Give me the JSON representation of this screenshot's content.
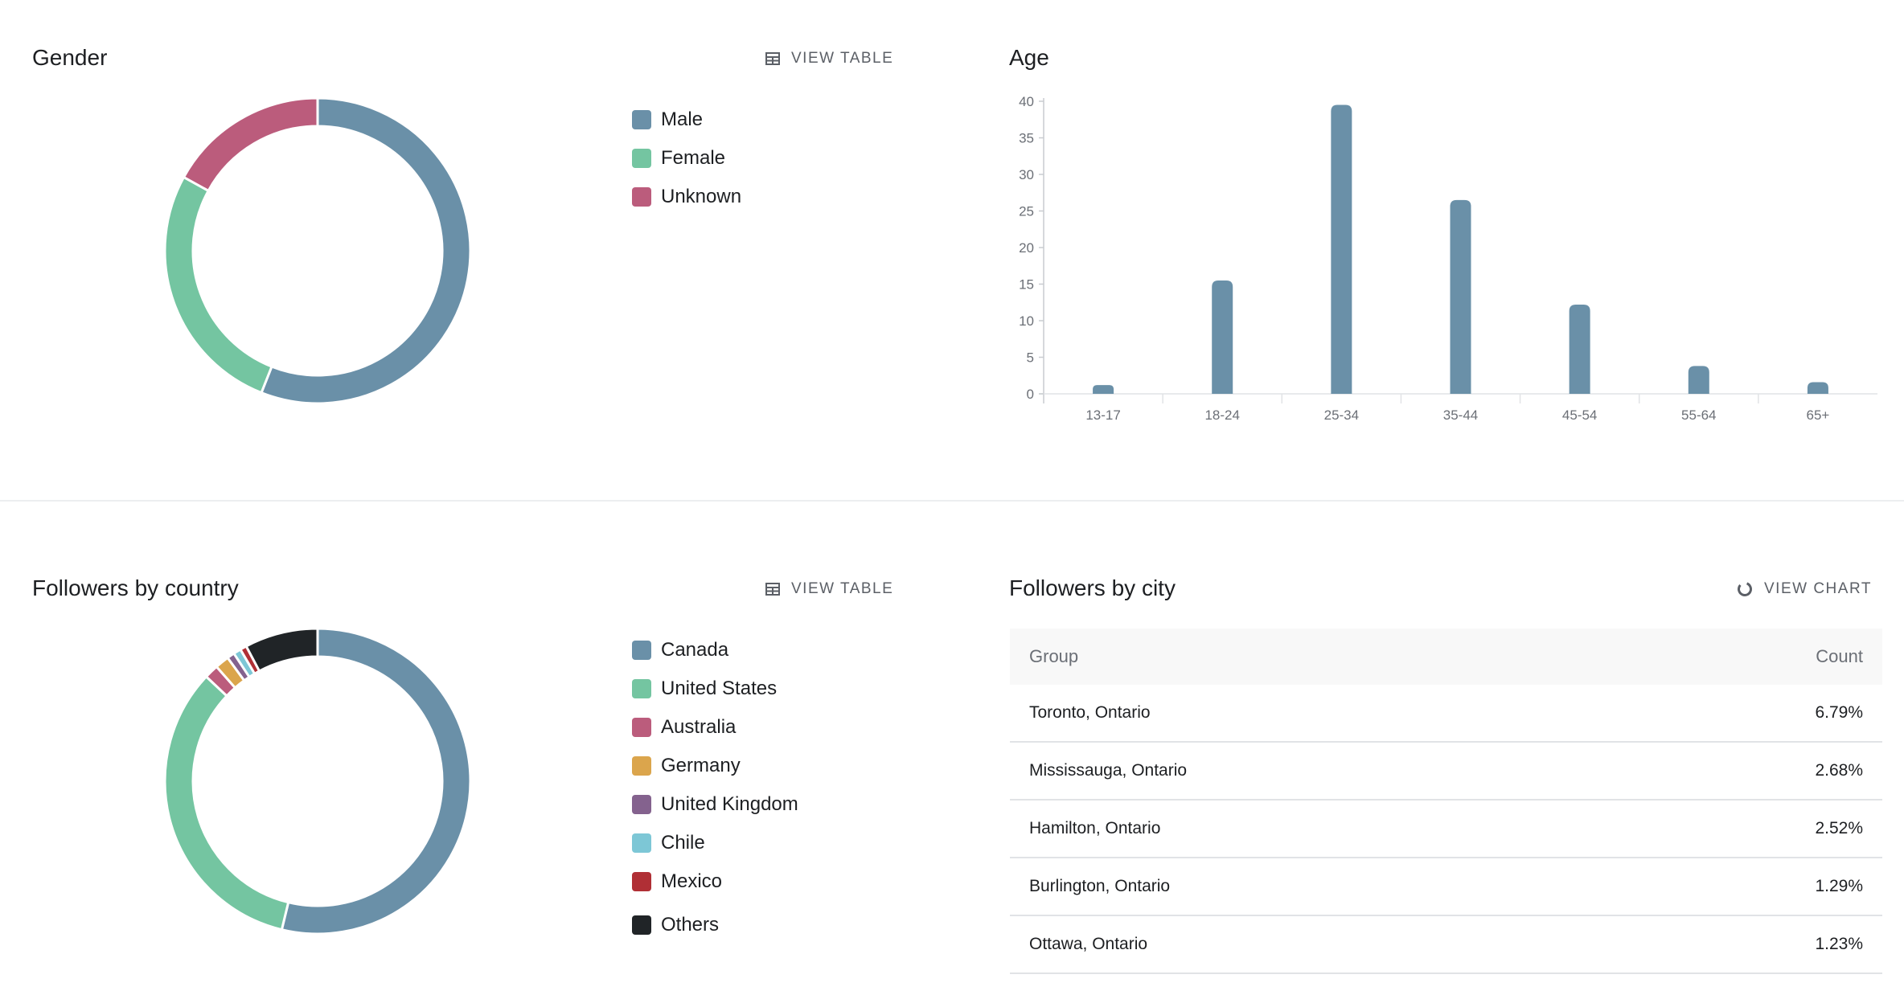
{
  "gender": {
    "title": "Gender",
    "view_label": "VIEW TABLE",
    "icon": "table-icon",
    "chart_data": {
      "type": "pie",
      "categories": [
        "Male",
        "Female",
        "Unknown"
      ],
      "values": [
        56,
        27,
        17
      ],
      "colors": [
        "#6a90a8",
        "#74c5a1",
        "#bb5c7c"
      ]
    }
  },
  "age": {
    "title": "Age",
    "chart_data": {
      "type": "bar",
      "categories": [
        "13-17",
        "18-24",
        "25-34",
        "35-44",
        "45-54",
        "55-64",
        "65+"
      ],
      "values": [
        1.2,
        15.5,
        39.5,
        26.5,
        12.2,
        3.8,
        1.6
      ],
      "ylim": [
        0,
        40
      ],
      "yticks": [
        0,
        5,
        10,
        15,
        20,
        25,
        30,
        35,
        40
      ],
      "color": "#6a90a8"
    }
  },
  "country": {
    "title": "Followers by country",
    "view_label": "VIEW TABLE",
    "icon": "table-icon",
    "chart_data": {
      "type": "pie",
      "categories": [
        "Canada",
        "United States",
        "Australia",
        "Germany",
        "United Kingdom",
        "Chile",
        "Mexico",
        "Others"
      ],
      "values": [
        54.2,
        33.5,
        1.5,
        1.5,
        0.8,
        0.8,
        0.7,
        7.8
      ],
      "colors": [
        "#6a90a8",
        "#74c5a1",
        "#bb5c7c",
        "#dba54c",
        "#84628e",
        "#7dc7d6",
        "#b02f35",
        "#202427"
      ]
    }
  },
  "city": {
    "title": "Followers by city",
    "view_label": "VIEW CHART",
    "icon": "donut-chart-icon",
    "columns": [
      "Group",
      "Count"
    ],
    "rows": [
      {
        "group": "Toronto, Ontario",
        "count": "6.79%"
      },
      {
        "group": "Mississauga, Ontario",
        "count": "2.68%"
      },
      {
        "group": "Hamilton, Ontario",
        "count": "2.52%"
      },
      {
        "group": "Burlington, Ontario",
        "count": "1.29%"
      },
      {
        "group": "Ottawa, Ontario",
        "count": "1.23%"
      }
    ]
  }
}
